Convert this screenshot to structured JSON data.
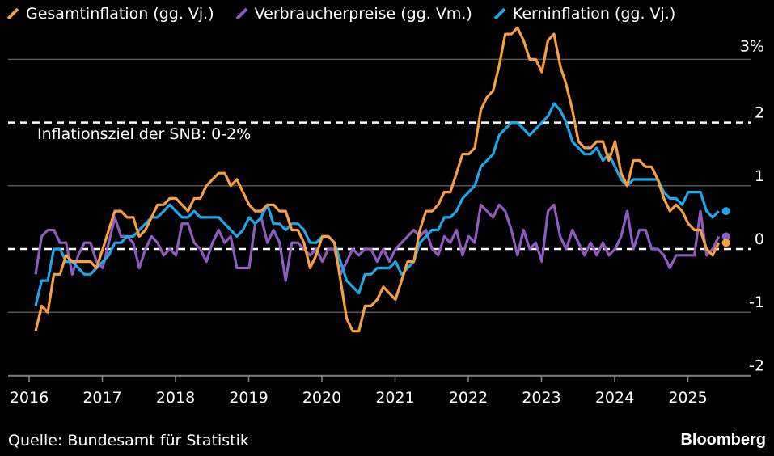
{
  "legend": [
    {
      "label": "Gesamtinflation (gg. Vj.)",
      "color": "#F7A03C"
    },
    {
      "label": "Verbraucherpreise (gg. Vm.)",
      "color": "#8E5BC1"
    },
    {
      "label": "Kerninflation (gg. Vj.)",
      "color": "#1CA7EC"
    }
  ],
  "annotation": "Inflationsziel der SNB: 0-2%",
  "source": "Quelle: Bundesamt für Statistik",
  "brand": "Bloomberg",
  "chart_data": {
    "type": "line",
    "xlim": [
      2016.0,
      2025.95
    ],
    "ylim": [
      -2.1,
      3.2
    ],
    "y_ticks": [
      {
        "v": 3,
        "label": "3%"
      },
      {
        "v": 2,
        "label": "2"
      },
      {
        "v": 1,
        "label": "1"
      },
      {
        "v": 0,
        "label": "0"
      },
      {
        "v": -1,
        "label": "-1"
      },
      {
        "v": -2,
        "label": "-2"
      }
    ],
    "x_ticks": [
      2016,
      2017,
      2018,
      2019,
      2020,
      2021,
      2022,
      2023,
      2024,
      2025
    ],
    "reference_lines": [
      0,
      2
    ],
    "grid": true,
    "legend_position": "top",
    "series": [
      {
        "name": "Gesamtinflation (gg. Vj.)",
        "color": "#F7A03C",
        "start": 2016.08,
        "values": [
          -1.3,
          -0.9,
          -1.0,
          -0.4,
          -0.4,
          -0.1,
          -0.2,
          -0.2,
          -0.2,
          -0.2,
          -0.3,
          0.0,
          0.3,
          0.6,
          0.6,
          0.5,
          0.5,
          0.2,
          0.3,
          0.5,
          0.7,
          0.7,
          0.8,
          0.8,
          0.7,
          0.6,
          0.8,
          0.8,
          1.0,
          1.1,
          1.2,
          1.2,
          1.0,
          1.1,
          0.9,
          0.7,
          0.6,
          0.6,
          0.7,
          0.7,
          0.6,
          0.6,
          0.3,
          0.3,
          0.1,
          -0.3,
          -0.1,
          0.2,
          0.2,
          0.1,
          -0.5,
          -1.1,
          -1.3,
          -1.3,
          -0.9,
          -0.9,
          -0.8,
          -0.6,
          -0.7,
          -0.8,
          -0.5,
          -0.2,
          -0.2,
          0.3,
          0.6,
          0.6,
          0.7,
          0.9,
          0.9,
          1.2,
          1.5,
          1.5,
          1.6,
          2.2,
          2.4,
          2.5,
          2.9,
          3.4,
          3.4,
          3.5,
          3.3,
          3.0,
          3.0,
          2.8,
          3.3,
          3.4,
          2.9,
          2.6,
          2.2,
          1.7,
          1.6,
          1.6,
          1.7,
          1.7,
          1.4,
          1.7,
          1.2,
          1.0,
          1.4,
          1.4,
          1.3,
          1.3,
          1.1,
          0.8,
          0.6,
          0.7,
          0.6,
          0.4,
          0.3,
          0.3,
          0.0,
          -0.1,
          0.1
        ]
      },
      {
        "name": "Verbraucherpreise (gg. Vm.)",
        "color": "#8E5BC1",
        "start": 2016.08,
        "values": [
          -0.4,
          0.2,
          0.3,
          0.3,
          0.1,
          0.1,
          -0.4,
          -0.1,
          0.1,
          0.1,
          -0.2,
          -0.3,
          0.1,
          0.5,
          0.2,
          0.2,
          0.1,
          -0.3,
          0.0,
          0.2,
          0.1,
          -0.1,
          0.0,
          -0.1,
          0.4,
          0.4,
          0.1,
          0.0,
          -0.2,
          0.1,
          0.3,
          0.1,
          0.2,
          -0.3,
          -0.3,
          -0.3,
          0.4,
          0.5,
          0.1,
          0.3,
          0.1,
          -0.5,
          0.1,
          0.1,
          0.0,
          -0.1,
          0.0,
          -0.2,
          0.0,
          0.0,
          -0.4,
          -0.2,
          0.0,
          -0.1,
          0.0,
          0.0,
          -0.2,
          0.0,
          -0.2,
          0.0,
          0.1,
          0.2,
          0.3,
          0.2,
          0.3,
          0.0,
          -0.1,
          0.2,
          0.1,
          0.3,
          -0.1,
          0.2,
          0.1,
          0.7,
          0.6,
          0.5,
          0.7,
          0.6,
          0.3,
          -0.1,
          0.3,
          0.0,
          0.1,
          -0.2,
          0.6,
          0.7,
          0.2,
          0.0,
          0.3,
          0.1,
          -0.1,
          0.1,
          -0.1,
          0.1,
          -0.1,
          0.0,
          0.2,
          0.6,
          0.0,
          0.3,
          0.3,
          0.0,
          0.0,
          -0.1,
          -0.3,
          -0.1,
          -0.1,
          -0.1,
          -0.1,
          0.6,
          -0.1,
          0.0,
          0.2
        ]
      },
      {
        "name": "Kerninflation (gg. Vj.)",
        "color": "#1CA7EC",
        "start": 2016.08,
        "values": [
          -0.9,
          -0.5,
          -0.5,
          0.0,
          0.0,
          -0.2,
          -0.2,
          -0.3,
          -0.4,
          -0.4,
          -0.3,
          -0.2,
          -0.1,
          0.1,
          0.1,
          0.2,
          0.2,
          0.3,
          0.4,
          0.5,
          0.5,
          0.6,
          0.7,
          0.6,
          0.5,
          0.5,
          0.6,
          0.5,
          0.5,
          0.5,
          0.5,
          0.4,
          0.3,
          0.2,
          0.3,
          0.5,
          0.4,
          0.5,
          0.7,
          0.4,
          0.4,
          0.3,
          0.4,
          0.4,
          0.3,
          0.1,
          0.1,
          0.2,
          0.2,
          0.1,
          -0.2,
          -0.5,
          -0.6,
          -0.7,
          -0.4,
          -0.4,
          -0.3,
          -0.3,
          -0.3,
          -0.2,
          -0.4,
          -0.3,
          -0.2,
          0.1,
          0.2,
          0.3,
          0.3,
          0.5,
          0.5,
          0.6,
          0.8,
          0.9,
          1.0,
          1.3,
          1.4,
          1.5,
          1.8,
          1.9,
          2.0,
          2.0,
          1.9,
          1.8,
          1.9,
          2.0,
          2.1,
          2.3,
          2.2,
          2.0,
          1.7,
          1.6,
          1.5,
          1.5,
          1.6,
          1.4,
          1.5,
          1.3,
          1.1,
          1.0,
          1.1,
          1.1,
          1.1,
          1.1,
          1.1,
          0.9,
          0.8,
          0.8,
          0.7,
          0.9,
          0.9,
          0.9,
          0.6,
          0.5,
          0.6
        ]
      }
    ]
  }
}
